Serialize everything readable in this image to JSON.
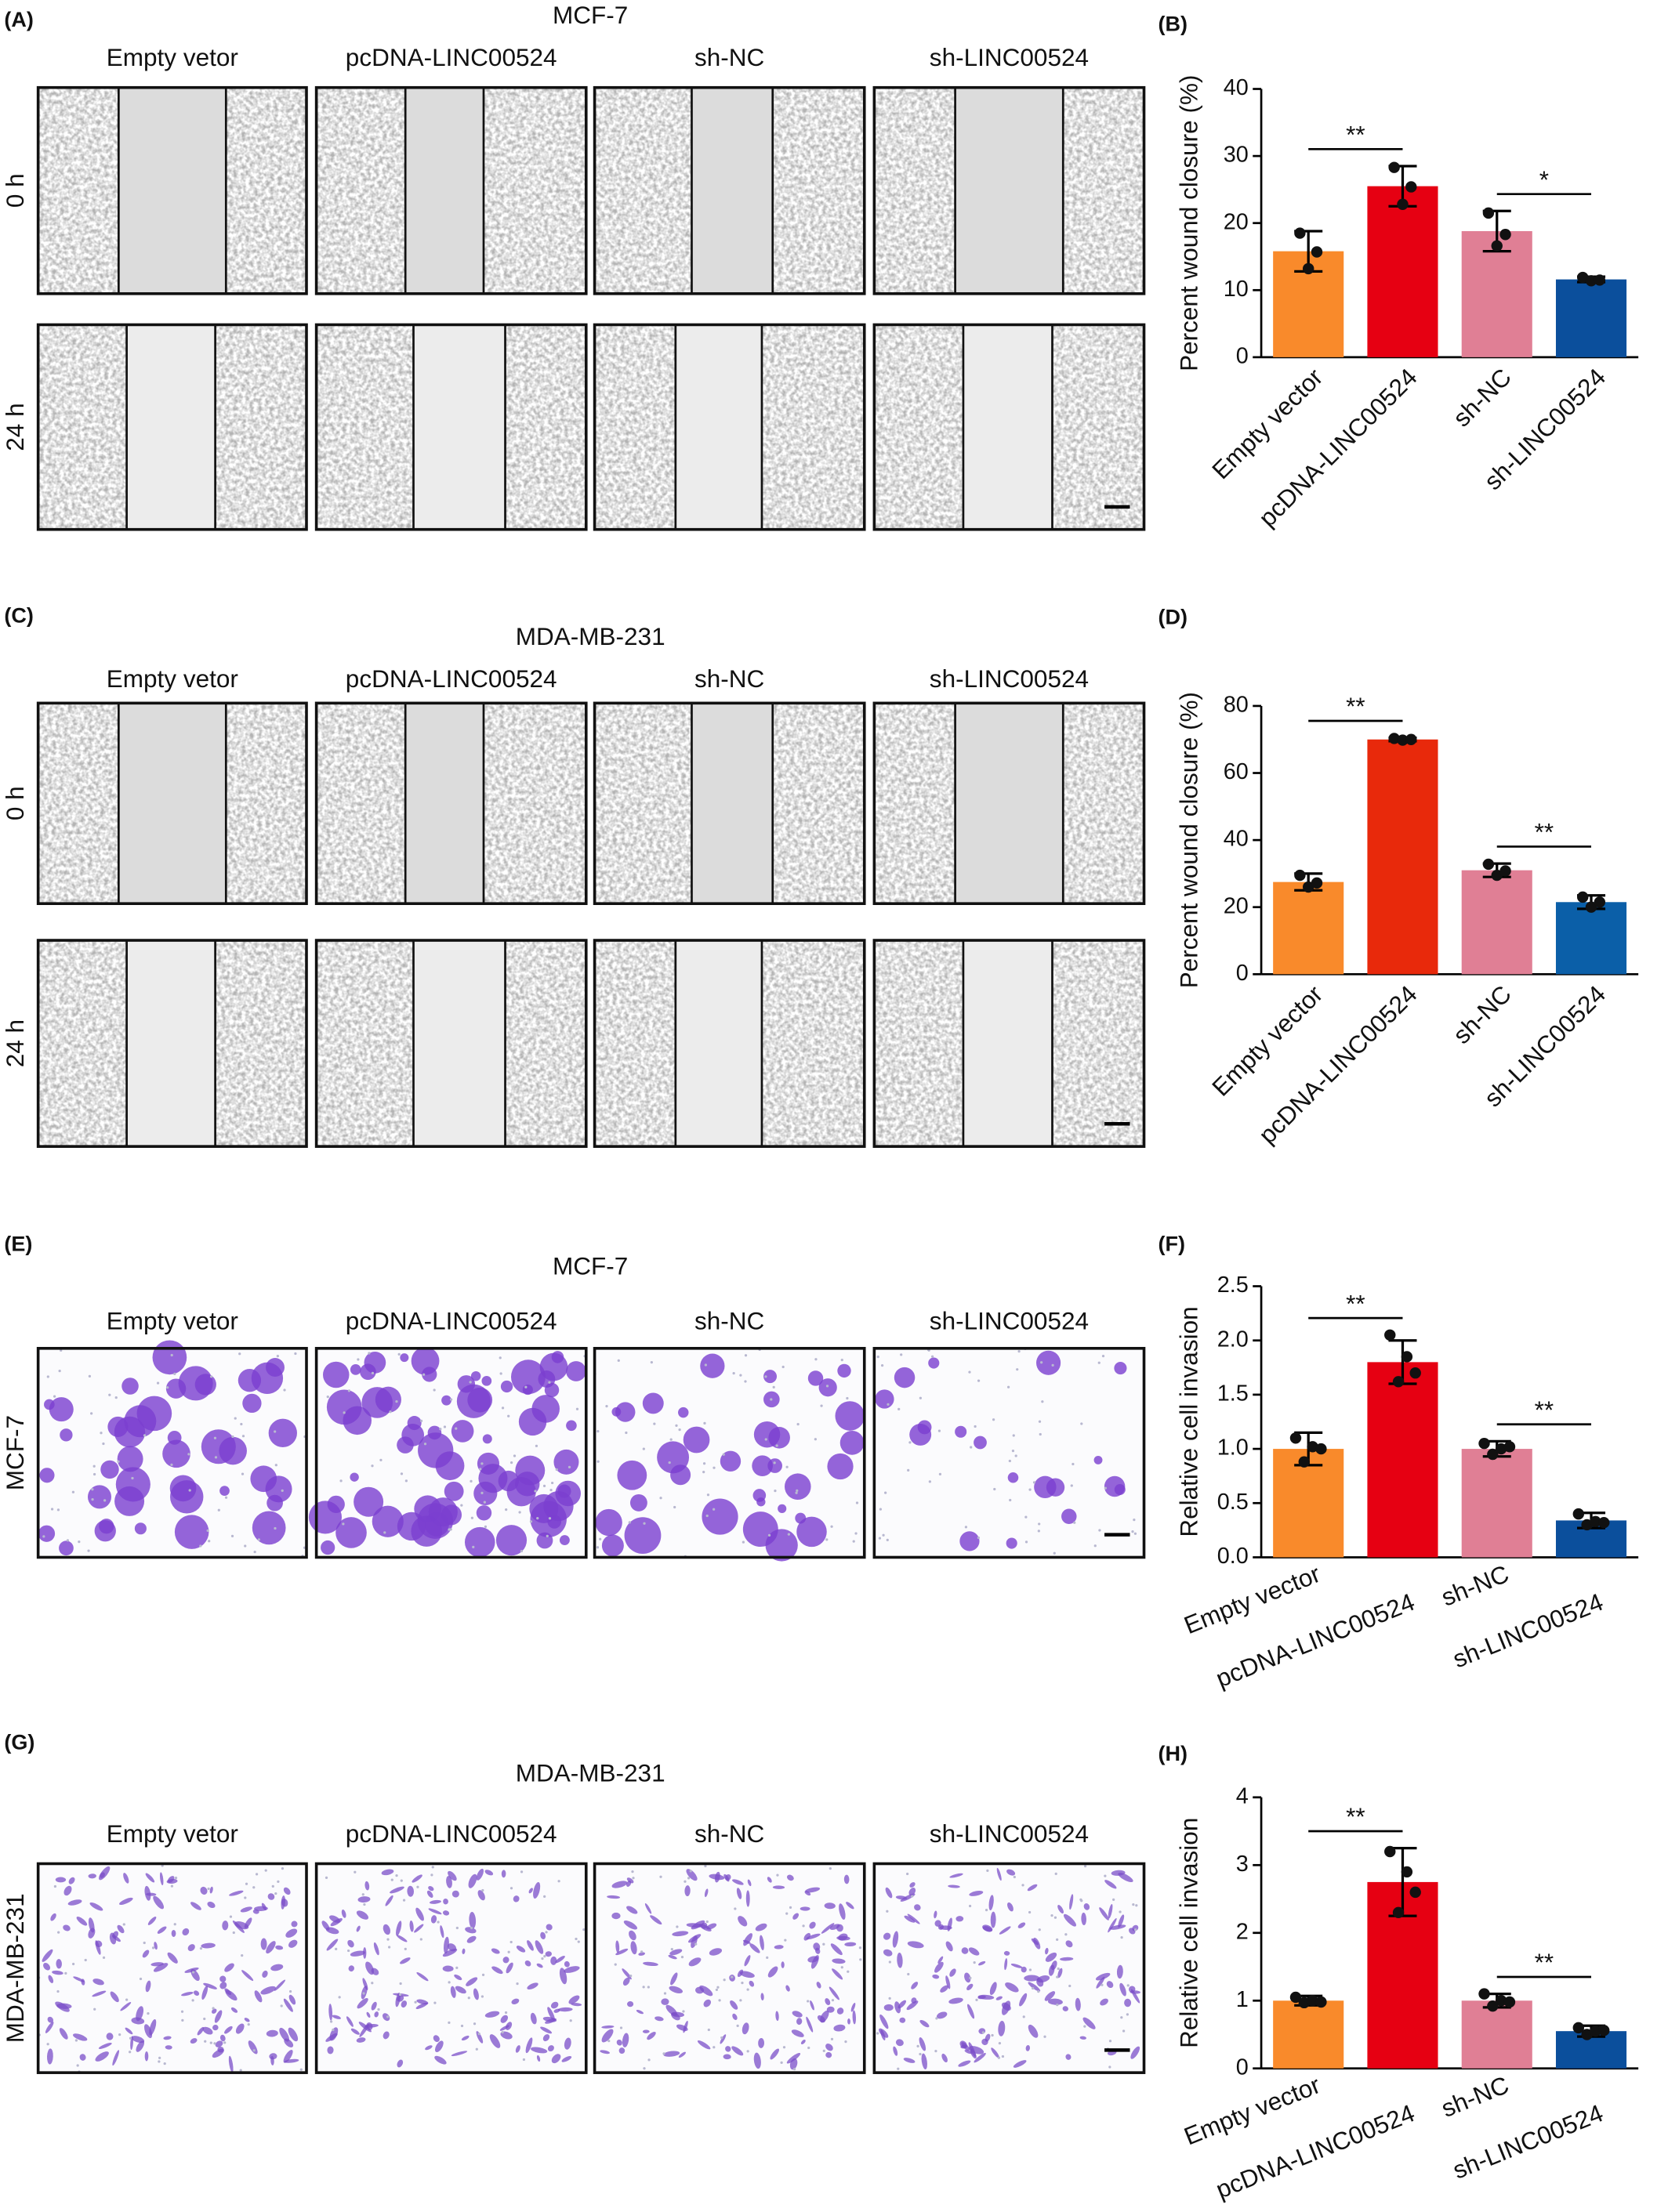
{
  "image_panels": [
    {
      "label": "(A)",
      "title": "MCF-7",
      "columns": [
        "Empty vetor",
        "pcDNA-LINC00524",
        "sh-NC",
        "sh-LINC00524"
      ],
      "rows": [
        "0 h",
        "24 h"
      ]
    },
    {
      "label": "(C)",
      "title": "MDA-MB-231",
      "columns": [
        "Empty vetor",
        "pcDNA-LINC00524",
        "sh-NC",
        "sh-LINC00524"
      ],
      "rows": [
        "0 h",
        "24 h"
      ]
    },
    {
      "label": "(E)",
      "title": "MCF-7",
      "columns": [
        "Empty vetor",
        "pcDNA-LINC00524",
        "sh-NC",
        "sh-LINC00524"
      ],
      "rows": [
        "MCF-7"
      ]
    },
    {
      "label": "(G)",
      "title": "MDA-MB-231",
      "columns": [
        "Empty vetor",
        "pcDNA-LINC00524",
        "sh-NC",
        "sh-LINC00524"
      ],
      "rows": [
        "MDA-MB-231"
      ]
    }
  ],
  "chart_data": [
    {
      "type": "bar",
      "label": "(B)",
      "ylabel": "Percent wound closure (%)",
      "categories": [
        "Empty vector",
        "pcDNA-LINC00524",
        "sh-NC",
        "sh-LINC00524"
      ],
      "values": [
        15.8,
        25.5,
        18.8,
        11.6
      ],
      "errors": [
        3,
        3,
        3,
        0.4
      ],
      "points": [
        [
          18.5,
          13.2,
          15.7
        ],
        [
          28.3,
          22.8,
          25.4
        ],
        [
          21.5,
          16.6,
          18.3
        ],
        [
          11.9,
          11.4,
          11.5
        ]
      ],
      "colors": [
        "#f98a2b",
        "#e60012",
        "#e07f95",
        "#0b4f9c"
      ],
      "ylim": [
        0,
        40
      ],
      "yticks": [
        0,
        10,
        20,
        30,
        40
      ],
      "significance": [
        {
          "from": 0,
          "to": 1,
          "label": "**"
        },
        {
          "from": 2,
          "to": 3,
          "label": "*"
        }
      ]
    },
    {
      "type": "bar",
      "label": "(D)",
      "ylabel": "Percent wound closure (%)",
      "categories": [
        "Empty vector",
        "pcDNA-LINC00524",
        "sh-NC",
        "sh-LINC00524"
      ],
      "values": [
        27.5,
        70,
        31,
        21.5
      ],
      "errors": [
        2.5,
        0.5,
        2,
        2
      ],
      "points": [
        [
          29.5,
          26,
          27.2
        ],
        [
          70.3,
          69.8,
          70
        ],
        [
          32.8,
          29.5,
          30.8
        ],
        [
          23,
          20,
          21.5
        ]
      ],
      "colors": [
        "#f98a2b",
        "#e8290b",
        "#e07f95",
        "#0b5fa8"
      ],
      "ylim": [
        0,
        80
      ],
      "yticks": [
        0,
        20,
        40,
        60,
        80
      ],
      "significance": [
        {
          "from": 0,
          "to": 1,
          "label": "**"
        },
        {
          "from": 2,
          "to": 3,
          "label": "**"
        }
      ]
    },
    {
      "type": "bar",
      "label": "(F)",
      "ylabel": "Relative cell invasion",
      "categories": [
        "Empty vector",
        "pcDNA-LINC00524",
        "sh-NC",
        "sh-LINC00524"
      ],
      "values": [
        1.0,
        1.8,
        1.0,
        0.34
      ],
      "errors": [
        0.15,
        0.2,
        0.07,
        0.07
      ],
      "points": [
        [
          1.1,
          0.88,
          1.02,
          1.0
        ],
        [
          2.05,
          1.62,
          1.85,
          1.7
        ],
        [
          1.05,
          0.95,
          1.0,
          1.02
        ],
        [
          0.4,
          0.3,
          0.33,
          0.32
        ]
      ],
      "colors": [
        "#f98a2b",
        "#e60012",
        "#e07f95",
        "#0b4f9c"
      ],
      "ylim": [
        0,
        2.5
      ],
      "yticks": [
        {
          "value": 0,
          "label": "0.0"
        },
        0.5,
        {
          "value": 1,
          "label": "1.0"
        },
        1.5,
        {
          "value": 2,
          "label": "2.0"
        },
        2.5
      ],
      "significance": [
        {
          "from": 0,
          "to": 1,
          "label": "**"
        },
        {
          "from": 2,
          "to": 3,
          "label": "**"
        }
      ]
    },
    {
      "type": "bar",
      "label": "(H)",
      "ylabel": "Relative cell invasion",
      "categories": [
        "Empty vector",
        "pcDNA-LINC00524",
        "sh-NC",
        "sh-LINC00524"
      ],
      "values": [
        1.0,
        2.75,
        1.0,
        0.55
      ],
      "errors": [
        0.07,
        0.5,
        0.1,
        0.08
      ],
      "points": [
        [
          1.05,
          0.97,
          1.0,
          0.98
        ],
        [
          3.2,
          2.3,
          2.9,
          2.6
        ],
        [
          1.1,
          0.92,
          1.0,
          0.98
        ],
        [
          0.6,
          0.5,
          0.55,
          0.56
        ]
      ],
      "colors": [
        "#f98a2b",
        "#e60012",
        "#e07f95",
        "#0b4f9c"
      ],
      "ylim": [
        0,
        4
      ],
      "yticks": [
        0,
        1,
        2,
        3,
        4
      ],
      "significance": [
        {
          "from": 0,
          "to": 1,
          "label": "**"
        },
        {
          "from": 2,
          "to": 3,
          "label": "**"
        }
      ]
    }
  ]
}
